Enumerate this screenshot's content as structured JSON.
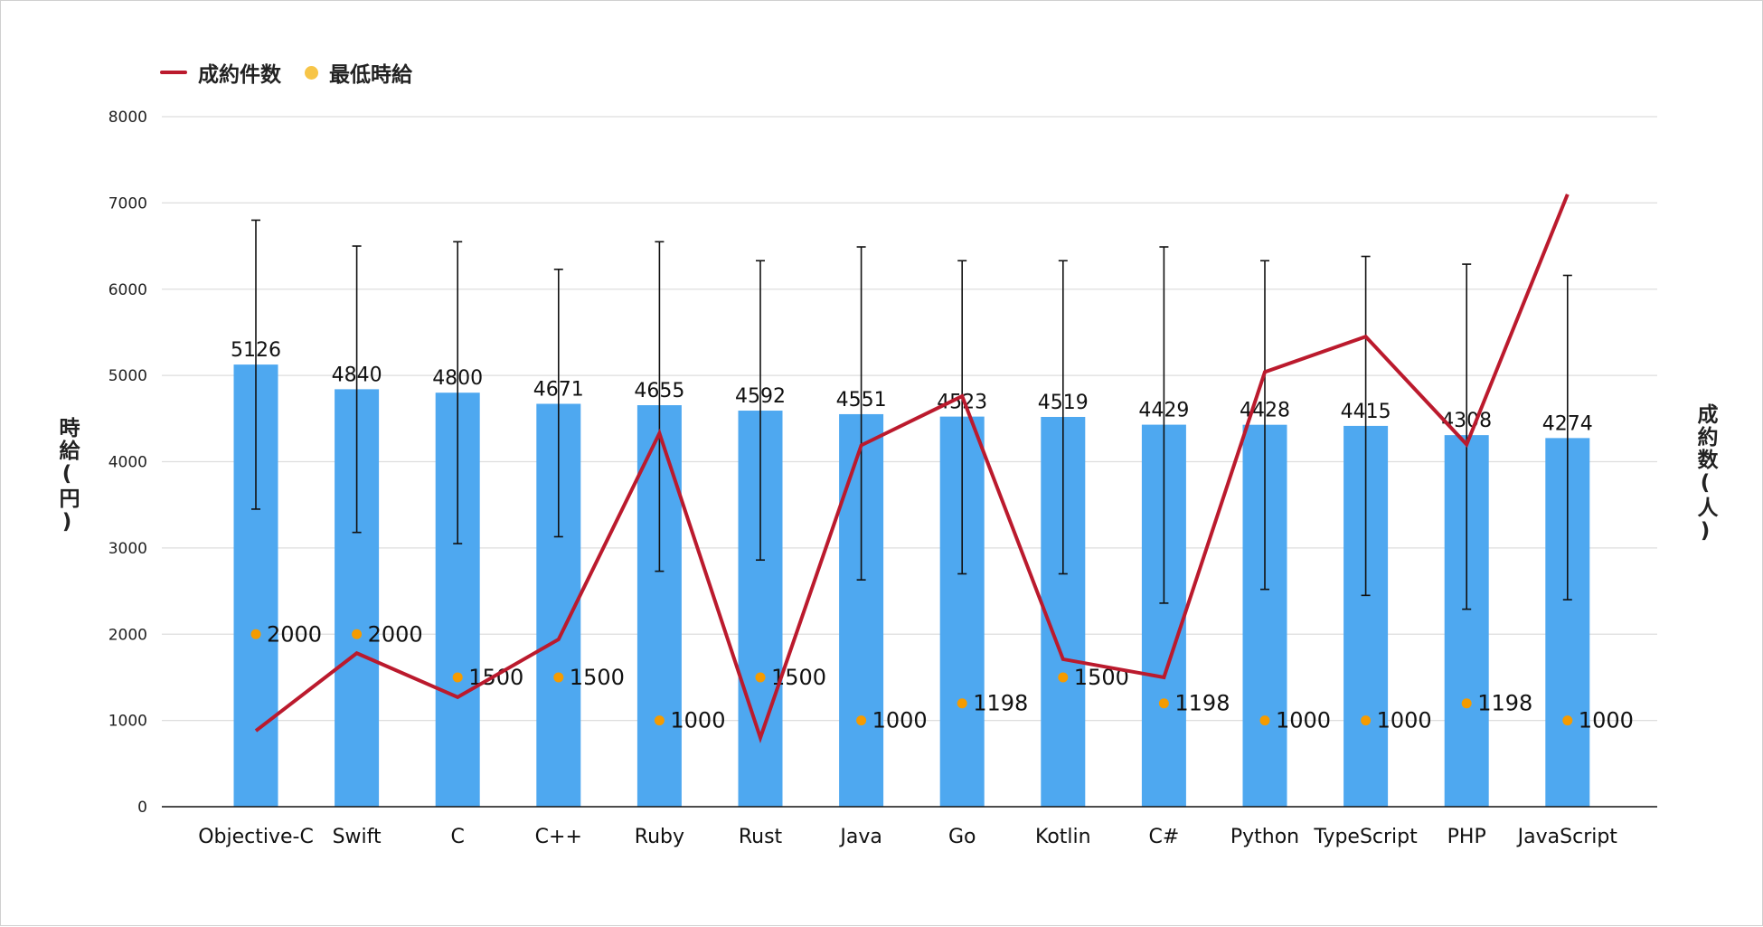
{
  "chart_data": {
    "type": "bar",
    "categories": [
      "Objective-C",
      "Swift",
      "C",
      "C++",
      "Ruby",
      "Rust",
      "Java",
      "Go",
      "Kotlin",
      "C#",
      "Python",
      "TypeScript",
      "PHP",
      "JavaScript"
    ],
    "ylabel": "時給(円)",
    "ylabel_right": "成約数(人)",
    "ylim": [
      0,
      8000
    ],
    "yticks": [
      0,
      1000,
      2000,
      3000,
      4000,
      5000,
      6000,
      7000,
      8000
    ],
    "grid": true,
    "legend_position": "top-left",
    "series": [
      {
        "type": "bar",
        "values": [
          5126,
          4840,
          4800,
          4671,
          4655,
          4592,
          4551,
          4523,
          4519,
          4429,
          4428,
          4415,
          4308,
          4274
        ],
        "color": "#4ea8f0",
        "error_high": [
          6800,
          6500,
          6550,
          6230,
          6550,
          6330,
          6490,
          6330,
          6330,
          6490,
          6330,
          6380,
          6290,
          6160
        ],
        "error_low": [
          3450,
          3180,
          3050,
          3130,
          2730,
          2860,
          2630,
          2700,
          2700,
          2360,
          2520,
          2450,
          2290,
          2400
        ]
      },
      {
        "type": "line",
        "name": "成約件数",
        "axis": "right",
        "color": "#bb1a2d",
        "values": [
          880,
          1780,
          1270,
          1940,
          4330,
          800,
          4190,
          4760,
          1710,
          1500,
          5040,
          5450,
          4200,
          7100
        ]
      },
      {
        "type": "scatter",
        "name": "最低時給",
        "color": "#f7c548",
        "marker_color": "#f59b00",
        "values": [
          2000,
          2000,
          1500,
          1500,
          1000,
          1500,
          1000,
          1198,
          1500,
          1198,
          1000,
          1000,
          1198,
          1000
        ]
      }
    ]
  }
}
